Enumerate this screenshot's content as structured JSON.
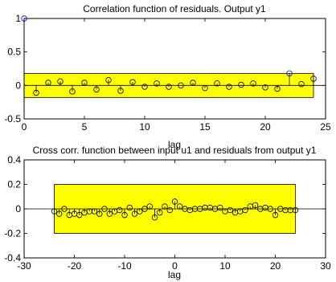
{
  "colors": {
    "confidence_band": "#ffff00",
    "stem": "#000000",
    "marker_regular": "#000000",
    "marker_highlight": "#0000ff",
    "axes": "#000000",
    "background": "#ffffff"
  },
  "chart_data": [
    {
      "type": "stem",
      "title": "Correlation function of residuals. Output y1",
      "xlabel": "lag",
      "ylabel": "",
      "xlim": [
        0,
        25
      ],
      "ylim": [
        -0.5,
        1
      ],
      "xticks": [
        0,
        5,
        10,
        15,
        20,
        25
      ],
      "yticks": [
        -0.5,
        0,
        0.5,
        1
      ],
      "xtick_labels": [
        "0",
        "5",
        "10",
        "15",
        "20",
        "25"
      ],
      "ytick_labels": [
        "-0.5",
        "0",
        "0.5",
        "1"
      ],
      "grid": false,
      "confidence_band": {
        "xmin": 0,
        "xmax": 24,
        "ymin": -0.18,
        "ymax": 0.18
      },
      "highlight_color_points": [
        0,
        22
      ],
      "x": [
        0,
        1,
        2,
        3,
        4,
        5,
        6,
        7,
        8,
        9,
        10,
        11,
        12,
        13,
        14,
        15,
        16,
        17,
        18,
        19,
        20,
        21,
        22,
        23,
        24
      ],
      "values": [
        1.0,
        -0.11,
        0.04,
        0.06,
        -0.09,
        0.04,
        -0.06,
        0.08,
        -0.08,
        0.05,
        -0.02,
        0.03,
        -0.02,
        0.0,
        0.04,
        -0.04,
        0.03,
        -0.02,
        0.01,
        0.03,
        -0.03,
        -0.05,
        0.18,
        0.02,
        0.1
      ]
    },
    {
      "type": "stem",
      "title": "Cross corr. function between input u1 and residuals from output y1",
      "xlabel": "lag",
      "ylabel": "",
      "xlim": [
        -30,
        30
      ],
      "ylim": [
        -0.4,
        0.4
      ],
      "xticks": [
        -30,
        -20,
        -10,
        0,
        10,
        20,
        30
      ],
      "yticks": [
        -0.4,
        -0.2,
        0,
        0.2,
        0.4
      ],
      "xtick_labels": [
        "-30",
        "-20",
        "-10",
        "0",
        "10",
        "20",
        "30"
      ],
      "ytick_labels": [
        "-0.4",
        "-0.2",
        "0",
        "0.2",
        "0.4"
      ],
      "grid": false,
      "confidence_band": {
        "xmin": -24,
        "xmax": 24,
        "ymin": -0.2,
        "ymax": 0.2
      },
      "highlight_color_points": [],
      "x": [
        -24,
        -23,
        -22,
        -21,
        -20,
        -19,
        -18,
        -17,
        -16,
        -15,
        -14,
        -13,
        -12,
        -11,
        -10,
        -9,
        -8,
        -7,
        -6,
        -5,
        -4,
        -3,
        -2,
        -1,
        0,
        1,
        2,
        3,
        4,
        5,
        6,
        7,
        8,
        9,
        10,
        11,
        12,
        13,
        14,
        15,
        16,
        17,
        18,
        19,
        20,
        21,
        22,
        23,
        24
      ],
      "values": [
        -0.02,
        -0.04,
        0.0,
        -0.05,
        -0.04,
        -0.05,
        -0.03,
        -0.02,
        -0.02,
        -0.04,
        0.0,
        -0.04,
        -0.02,
        -0.01,
        -0.05,
        0.01,
        -0.04,
        -0.02,
        0.0,
        0.02,
        -0.07,
        -0.03,
        0.02,
        -0.01,
        0.06,
        0.02,
        0.0,
        -0.01,
        0.0,
        0.0,
        0.01,
        0.01,
        0.0,
        0.01,
        -0.02,
        -0.01,
        -0.03,
        -0.02,
        -0.01,
        0.02,
        0.03,
        0.0,
        0.01,
        0.0,
        -0.05,
        0.0,
        -0.01,
        -0.01,
        -0.01
      ]
    }
  ]
}
